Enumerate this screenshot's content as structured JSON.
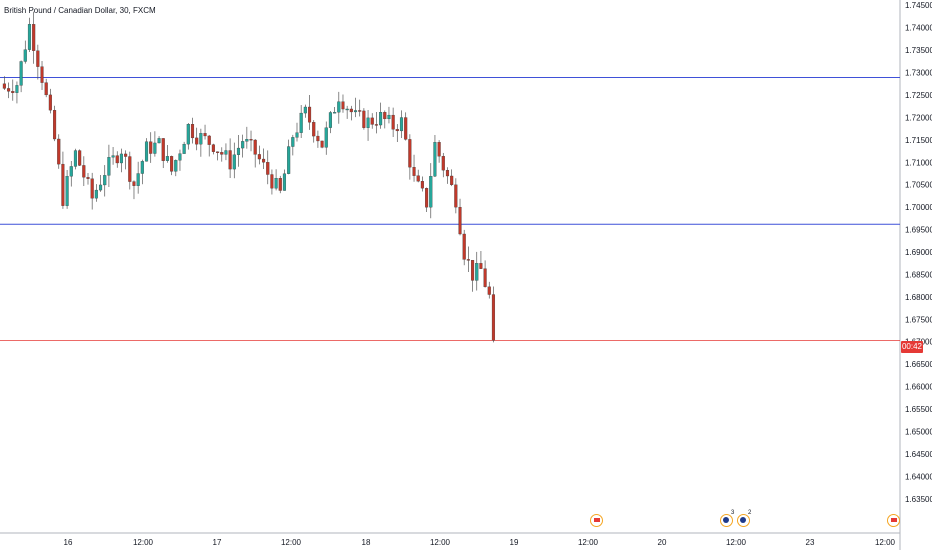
{
  "header": {
    "title": "British Pound / Canadian Dollar, 30, FXCM"
  },
  "price_badge": "00:42",
  "colors": {
    "up": "#26a69a",
    "down": "#c0392b",
    "hline": "#3f51d8",
    "last_price": "#e53935"
  },
  "events": [
    {
      "icon": "canada-flag-icon",
      "count": ""
    },
    {
      "icon": "uk-flag-icon",
      "count": "3"
    },
    {
      "icon": "uk-flag-icon",
      "count": "2"
    },
    {
      "icon": "canada-flag-icon",
      "count": ""
    }
  ],
  "chart_data": {
    "type": "candlestick",
    "title": "British Pound / Canadian Dollar, 30, FXCM",
    "y_ticks": [
      "1.74500",
      "1.74000",
      "1.73500",
      "1.73000",
      "1.72500",
      "1.72000",
      "1.71500",
      "1.71000",
      "1.70500",
      "1.70000",
      "1.69500",
      "1.69000",
      "1.68500",
      "1.68000",
      "1.67500",
      "1.67000",
      "1.66500",
      "1.66000",
      "1.65500",
      "1.65000",
      "1.64500",
      "1.64000",
      "1.63500"
    ],
    "x_ticks": [
      "16",
      "12:00",
      "17",
      "12:00",
      "18",
      "12:00",
      "19",
      "12:00",
      "20",
      "12:00",
      "23",
      "12:00"
    ],
    "ylim": [
      1.6325,
      1.7455
    ],
    "horizontal_lines": [
      1.7289,
      1.6962
    ],
    "last_price": 1.6703,
    "waypoints": [
      [
        0,
        1.7265
      ],
      [
        3,
        1.7275
      ],
      [
        6,
        1.7405
      ],
      [
        9,
        1.729
      ],
      [
        12,
        1.715
      ],
      [
        14,
        1.702
      ],
      [
        17,
        1.712
      ],
      [
        21,
        1.702
      ],
      [
        24,
        1.708
      ],
      [
        28,
        1.713
      ],
      [
        31,
        1.705
      ],
      [
        34,
        1.713
      ],
      [
        37,
        1.714
      ],
      [
        40,
        1.708
      ],
      [
        44,
        1.718
      ],
      [
        46,
        1.716
      ],
      [
        50,
        1.714
      ],
      [
        54,
        1.71
      ],
      [
        57,
        1.715
      ],
      [
        60,
        1.712
      ],
      [
        64,
        1.706
      ],
      [
        66,
        1.703
      ],
      [
        69,
        1.716
      ],
      [
        72,
        1.721
      ],
      [
        76,
        1.714
      ],
      [
        80,
        1.725
      ],
      [
        84,
        1.72
      ],
      [
        87,
        1.719
      ],
      [
        90,
        1.72
      ],
      [
        93,
        1.718
      ],
      [
        95,
        1.719
      ],
      [
        98,
        1.706
      ],
      [
        101,
        1.701
      ],
      [
        103,
        1.714
      ],
      [
        105,
        1.709
      ],
      [
        108,
        1.702
      ],
      [
        110,
        1.69
      ],
      [
        112,
        1.685
      ],
      [
        114,
        1.686
      ],
      [
        116,
        1.68
      ],
      [
        117,
        1.6703
      ]
    ],
    "candle_count": 118
  }
}
